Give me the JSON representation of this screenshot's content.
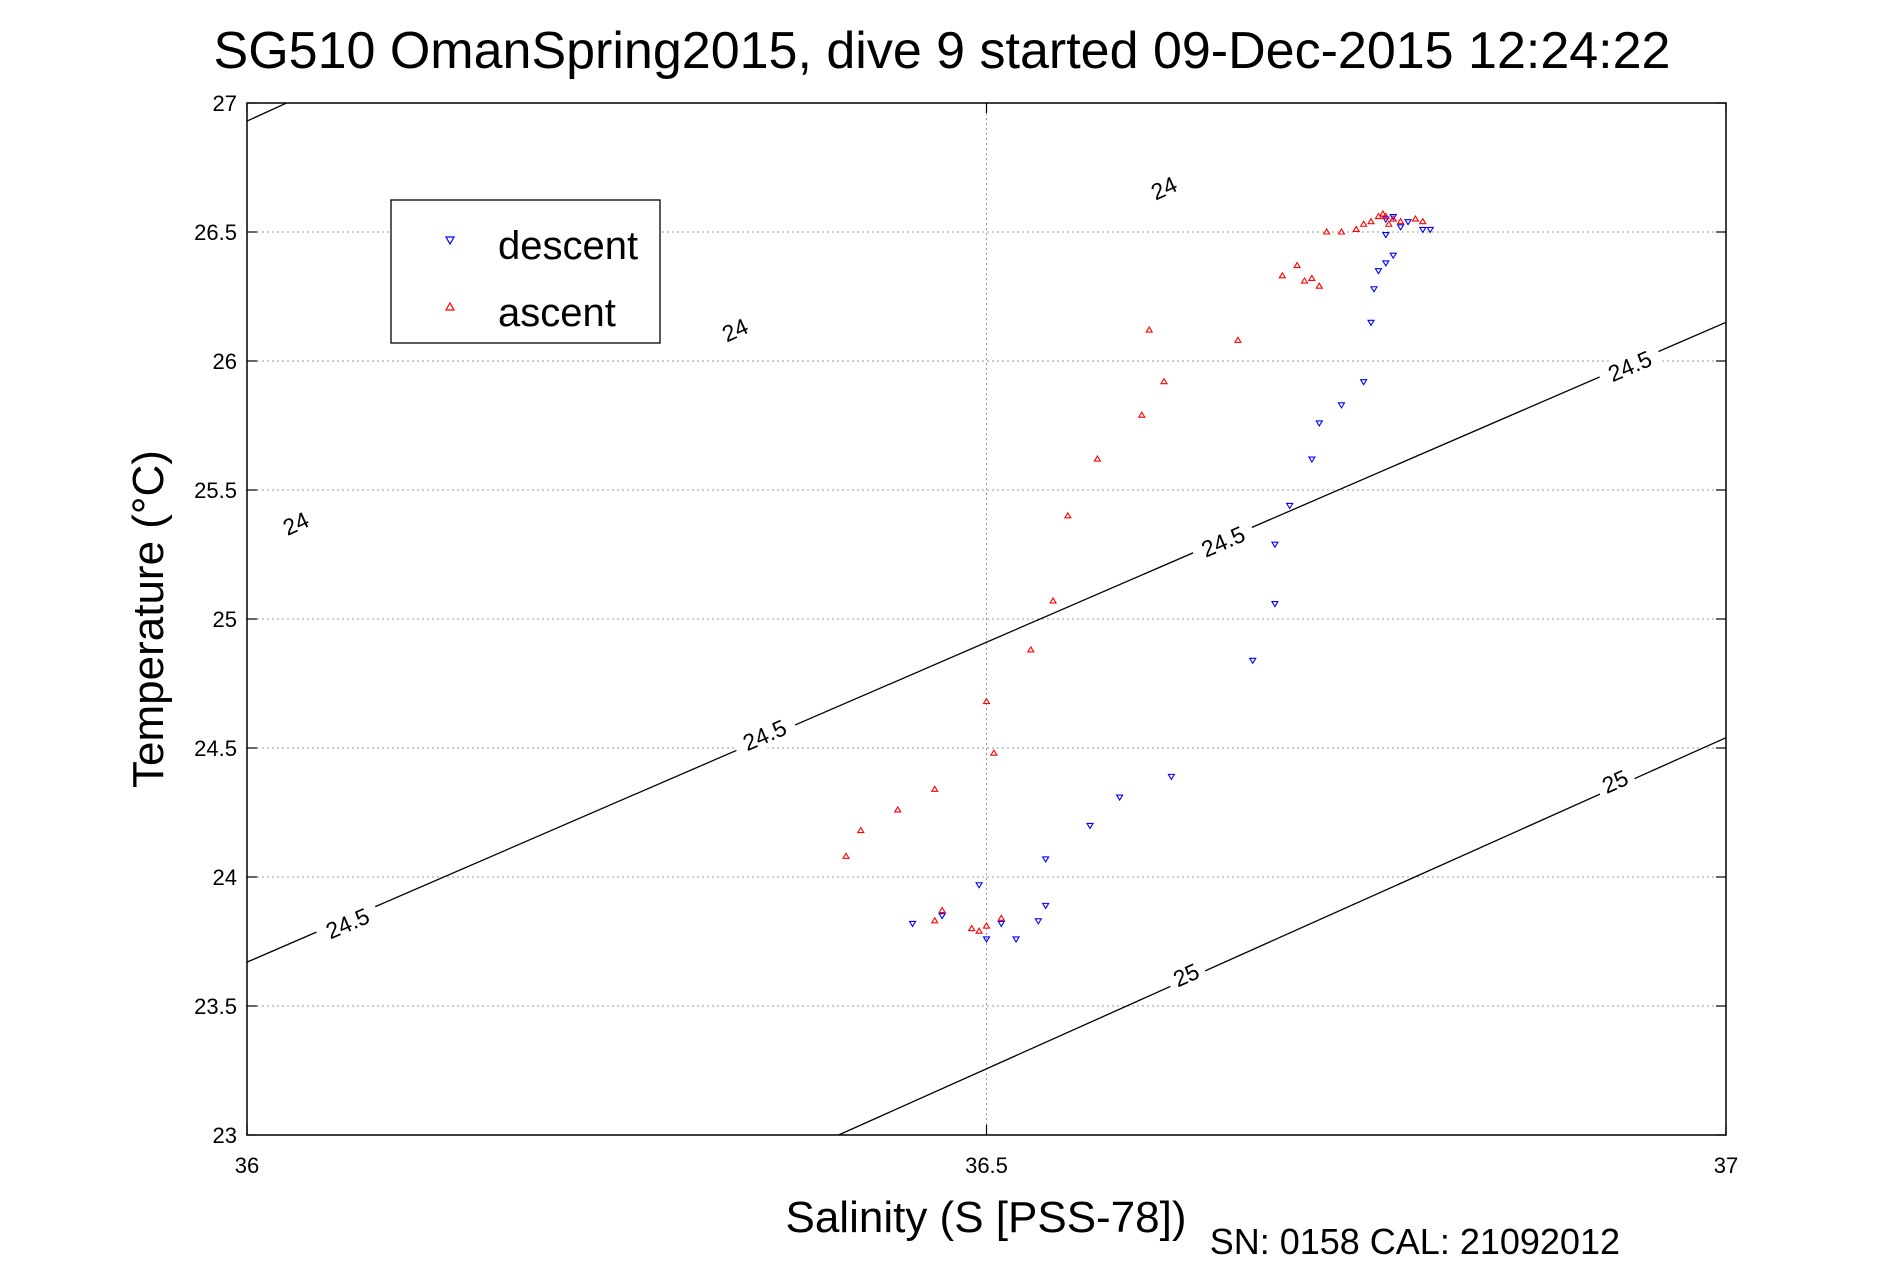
{
  "chart_data": {
    "type": "scatter",
    "title": "SG510 OmanSpring2015, dive 9 started 09-Dec-2015 12:24:22",
    "xlabel": "Salinity (S [PSS-78])",
    "ylabel": "Temperature (°C)",
    "xlim": [
      36,
      37
    ],
    "ylim": [
      23,
      27
    ],
    "xticks": [
      36,
      36.5,
      37
    ],
    "xtick_labels": [
      "36",
      "36.5",
      "37"
    ],
    "yticks": [
      23,
      23.5,
      24,
      24.5,
      25,
      25.5,
      26,
      26.5,
      27
    ],
    "ytick_labels": [
      "23",
      "23.5",
      "24",
      "24.5",
      "25",
      "25.5",
      "26",
      "26.5",
      "27"
    ],
    "grid": true,
    "legend_position": "top-left",
    "footer": "SN: 0158  CAL: 21092012",
    "colors": {
      "descent": "#0000ff",
      "ascent": "#ff0000",
      "contour": "#000000",
      "grid": "#999999"
    },
    "contours": [
      {
        "level": "24",
        "points": [
          [
            36.0,
            26.93
          ],
          [
            36.7,
            28.76
          ]
        ],
        "labels": [
          {
            "x": 36.62,
            "y": 26.67
          },
          {
            "x": 36.33,
            "y": 26.12
          },
          {
            "x": 36.033,
            "y": 25.37
          }
        ]
      },
      {
        "level": "24.5",
        "points": [
          [
            36.0,
            23.67
          ],
          [
            37.0,
            26.15
          ]
        ],
        "labels": [
          {
            "x": 36.935,
            "y": 25.98
          },
          {
            "x": 36.66,
            "y": 25.3
          },
          {
            "x": 36.35,
            "y": 24.55
          },
          {
            "x": 36.068,
            "y": 23.82
          }
        ]
      },
      {
        "level": "25",
        "points": [
          [
            36.4,
            23.0
          ],
          [
            37.0,
            24.54
          ]
        ],
        "labels": [
          {
            "x": 36.925,
            "y": 24.37
          },
          {
            "x": 36.635,
            "y": 23.62
          }
        ]
      }
    ],
    "series": [
      {
        "name": "descent",
        "marker": "triangle-down",
        "points": [
          [
            36.45,
            23.82
          ],
          [
            36.47,
            23.85
          ],
          [
            36.495,
            23.97
          ],
          [
            36.5,
            23.76
          ],
          [
            36.51,
            23.82
          ],
          [
            36.52,
            23.76
          ],
          [
            36.535,
            23.83
          ],
          [
            36.54,
            23.89
          ],
          [
            36.54,
            24.07
          ],
          [
            36.57,
            24.2
          ],
          [
            36.59,
            24.31
          ],
          [
            36.625,
            24.39
          ],
          [
            36.68,
            24.84
          ],
          [
            36.695,
            25.06
          ],
          [
            36.695,
            25.29
          ],
          [
            36.705,
            25.44
          ],
          [
            36.72,
            25.62
          ],
          [
            36.725,
            25.76
          ],
          [
            36.74,
            25.83
          ],
          [
            36.755,
            25.92
          ],
          [
            36.76,
            26.15
          ],
          [
            36.762,
            26.28
          ],
          [
            36.765,
            26.35
          ],
          [
            36.77,
            26.38
          ],
          [
            36.775,
            26.41
          ],
          [
            36.77,
            26.49
          ],
          [
            36.78,
            26.52
          ],
          [
            36.785,
            26.54
          ],
          [
            36.775,
            26.56
          ],
          [
            36.77,
            26.55
          ],
          [
            36.795,
            26.51
          ],
          [
            36.8,
            26.51
          ]
        ]
      },
      {
        "name": "ascent",
        "marker": "triangle-up",
        "points": [
          [
            36.405,
            24.08
          ],
          [
            36.415,
            24.18
          ],
          [
            36.44,
            24.26
          ],
          [
            36.465,
            24.34
          ],
          [
            36.47,
            23.87
          ],
          [
            36.465,
            23.83
          ],
          [
            36.49,
            23.8
          ],
          [
            36.495,
            23.79
          ],
          [
            36.5,
            23.81
          ],
          [
            36.51,
            23.84
          ],
          [
            36.5,
            24.68
          ],
          [
            36.505,
            24.48
          ],
          [
            36.53,
            24.88
          ],
          [
            36.545,
            25.07
          ],
          [
            36.555,
            25.4
          ],
          [
            36.575,
            25.62
          ],
          [
            36.605,
            25.79
          ],
          [
            36.61,
            26.12
          ],
          [
            36.62,
            25.92
          ],
          [
            36.67,
            26.08
          ],
          [
            36.7,
            26.33
          ],
          [
            36.71,
            26.37
          ],
          [
            36.715,
            26.31
          ],
          [
            36.72,
            26.32
          ],
          [
            36.725,
            26.29
          ],
          [
            36.73,
            26.5
          ],
          [
            36.74,
            26.5
          ],
          [
            36.75,
            26.51
          ],
          [
            36.755,
            26.53
          ],
          [
            36.76,
            26.54
          ],
          [
            36.765,
            26.56
          ],
          [
            36.77,
            26.56
          ],
          [
            36.775,
            26.55
          ],
          [
            36.78,
            26.54
          ],
          [
            36.79,
            26.55
          ],
          [
            36.795,
            26.54
          ],
          [
            36.768,
            26.57
          ],
          [
            36.772,
            26.53
          ]
        ]
      }
    ]
  }
}
